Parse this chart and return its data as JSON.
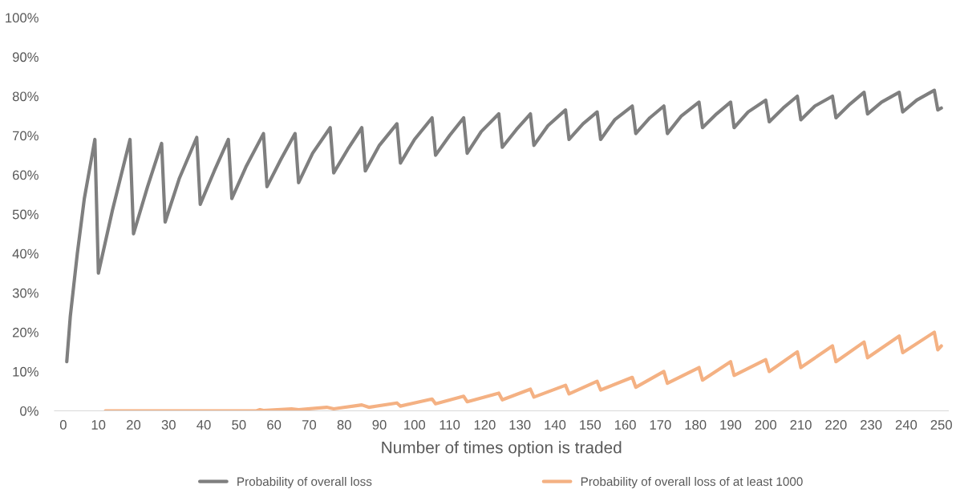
{
  "chart_data": {
    "type": "line",
    "xlabel": "Number of times option is traded",
    "xlim": [
      -2.5,
      252
    ],
    "xticks": [
      0,
      10,
      20,
      30,
      40,
      50,
      60,
      70,
      80,
      90,
      100,
      110,
      120,
      130,
      140,
      150,
      160,
      170,
      180,
      190,
      200,
      210,
      220,
      230,
      240,
      250
    ],
    "ylim": [
      0,
      100
    ],
    "yticks": [
      {
        "value": 0,
        "label": "0%"
      },
      {
        "value": 10,
        "label": "10%"
      },
      {
        "value": 20,
        "label": "20%"
      },
      {
        "value": 30,
        "label": "30%"
      },
      {
        "value": 40,
        "label": "40%"
      },
      {
        "value": 50,
        "label": "50%"
      },
      {
        "value": 60,
        "label": "60%"
      },
      {
        "value": 70,
        "label": "70%"
      },
      {
        "value": 80,
        "label": "80%"
      },
      {
        "value": 90,
        "label": "90%"
      },
      {
        "value": 100,
        "label": "100%"
      }
    ],
    "grid": false,
    "legend": "bottom",
    "marker": "none",
    "line_style": "solid",
    "series": [
      {
        "name": "Probability of overall loss",
        "color": "#7f7f7f",
        "x": [
          1,
          2,
          3,
          4,
          5,
          6,
          7,
          8,
          9,
          10,
          14,
          19,
          20,
          24,
          28,
          29,
          33,
          38,
          39,
          43,
          47,
          48,
          52,
          57,
          58,
          62,
          66,
          67,
          71,
          76,
          77,
          81,
          85,
          86,
          90,
          95,
          96,
          100,
          105,
          106,
          110,
          114,
          115,
          119,
          124,
          125,
          129,
          133,
          134,
          138,
          143,
          144,
          148,
          152,
          153,
          157,
          162,
          163,
          167,
          171,
          172,
          176,
          181,
          182,
          186,
          190,
          191,
          195,
          200,
          201,
          205,
          209,
          210,
          214,
          219,
          220,
          224,
          228,
          229,
          233,
          238,
          239,
          243,
          248,
          249,
          250
        ],
        "values": [
          12.5,
          24,
          32,
          40,
          47,
          54,
          59,
          64,
          69,
          35,
          51,
          69,
          45,
          57,
          68,
          48,
          59,
          69.5,
          52.5,
          61,
          69,
          54,
          62,
          70.5,
          57,
          64,
          70.5,
          58,
          65.5,
          72,
          60.5,
          66.5,
          72,
          61,
          67.5,
          73,
          63,
          69,
          74.5,
          65,
          70,
          74.5,
          65.5,
          71,
          75.5,
          67,
          71.5,
          75.5,
          67.5,
          72.5,
          76.5,
          69,
          73,
          76,
          69,
          74,
          77.5,
          70.5,
          74.5,
          77.5,
          70.5,
          75,
          78.5,
          72,
          75.5,
          78.5,
          72,
          76,
          79,
          73.5,
          77,
          80,
          74,
          77.5,
          80,
          74.5,
          78,
          81,
          75.5,
          78.5,
          81,
          76,
          79,
          81.5,
          76.5,
          77
        ]
      },
      {
        "name": "Probability of overall loss of at least 1000",
        "color": "#f4b183",
        "x": [
          12,
          55,
          56,
          57,
          65,
          67,
          75,
          77,
          85,
          87,
          95,
          96,
          105,
          106,
          114,
          115,
          124,
          125,
          133,
          134,
          143,
          144,
          152,
          153,
          162,
          163,
          171,
          172,
          181,
          182,
          190,
          191,
          200,
          201,
          209,
          210,
          219,
          220,
          228,
          229,
          238,
          239,
          248,
          249,
          250
        ],
        "values": [
          0,
          0,
          0.3,
          0.1,
          0.5,
          0.3,
          0.9,
          0.5,
          1.5,
          0.9,
          2,
          1.2,
          3,
          1.8,
          3.7,
          2.3,
          4.5,
          2.8,
          5.5,
          3.5,
          6.5,
          4.3,
          7.5,
          5.3,
          8.5,
          6,
          10,
          7,
          11,
          7.8,
          12.5,
          9,
          13,
          10,
          15,
          11,
          16.5,
          12.5,
          17.5,
          13.5,
          19,
          14.8,
          20,
          15.5,
          16.5
        ]
      }
    ]
  }
}
